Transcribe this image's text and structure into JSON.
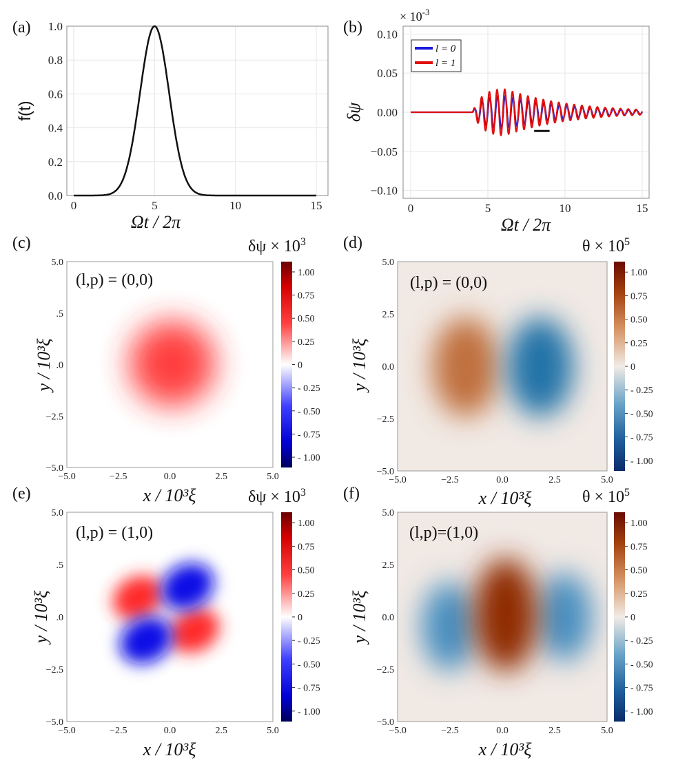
{
  "chart_data": [
    {
      "id": "a",
      "type": "line",
      "panel_label": "(a)",
      "xlabel": "Ωt / 2π",
      "ylabel": "f(t)",
      "xlim": [
        0,
        15
      ],
      "ylim": [
        0,
        1
      ],
      "xticks": [
        "0",
        "5",
        "10",
        "15"
      ],
      "yticks": [
        "0.0",
        "0.2",
        "0.4",
        "0.6",
        "0.8",
        "1.0"
      ],
      "grid": true,
      "series": [
        {
          "name": "f(t)",
          "color": "#000000",
          "shape": "gaussian",
          "center": 5,
          "sigma": 0.9,
          "amplitude": 1.0
        }
      ]
    },
    {
      "id": "b",
      "type": "line",
      "panel_label": "(b)",
      "xlabel": "Ωt / 2π",
      "ylabel": "δψ",
      "scale_label": "× 10",
      "scale_exponent": "-3",
      "xlim": [
        0,
        15
      ],
      "ylim": [
        -0.11,
        0.11
      ],
      "xticks": [
        "0",
        "5",
        "10",
        "15"
      ],
      "yticks": [
        "−0.10",
        "−0.05",
        "0.00",
        "0.05",
        "0.10"
      ],
      "grid": true,
      "legend_position": "top-left",
      "series": [
        {
          "name": "l = 0",
          "color": "#1a1adc",
          "onset": 4.0,
          "peak_time": 6.0,
          "peak_amplitude": 0.022,
          "period": 0.5,
          "decay": 4.0
        },
        {
          "name": "l = 1",
          "color": "#e01010",
          "onset": 4.0,
          "peak_time": 6.0,
          "peak_amplitude": 0.031,
          "period": 0.5,
          "decay": 4.0
        }
      ],
      "annotation": {
        "type": "bar",
        "x_from": 8.0,
        "x_to": 9.0,
        "y": -0.024
      }
    },
    {
      "id": "c",
      "type": "heatmap",
      "panel_label": "(c)",
      "mode_label": "(l,p) = (0,0)",
      "colorbar_title": "δψ × 10",
      "colorbar_exponent": "3",
      "colormap": "bwr",
      "pattern": "monopole",
      "xlim": [
        -5,
        5
      ],
      "ylim": [
        -5,
        5
      ],
      "xticks": [
        "−5.0",
        "−2.5",
        "0.0",
        "2.5",
        "5.0"
      ],
      "yticks": [
        "5.0",
        ".5",
        ".0",
        "−2.5",
        "−5.0"
      ],
      "xlabel": "x / 10³ξ",
      "ylabel": "y / 10³ξ",
      "colorbar_ticks": [
        "1.00",
        "0.75",
        "0.50",
        "0.25",
        "0",
        "- 0.25",
        "- 0.50",
        "- 0.75",
        "- 1.00"
      ]
    },
    {
      "id": "d",
      "type": "heatmap",
      "panel_label": "(d)",
      "mode_label": "(l,p) = (0,0)",
      "colorbar_title": "θ × 10",
      "colorbar_exponent": "5",
      "colormap": "RdBu_brown",
      "pattern": "dipole",
      "xlim": [
        -5,
        5
      ],
      "ylim": [
        -5,
        5
      ],
      "xticks": [
        "−5.0",
        "−2.5",
        "0.0",
        "2.5",
        "5.0"
      ],
      "yticks": [
        "5.0",
        "2.5",
        "0.0",
        "−2.5",
        "−5.0"
      ],
      "xlabel": "x / 10³ξ",
      "ylabel": "y / 10³ξ",
      "colorbar_ticks": [
        "1.00",
        "0.75",
        "0.50",
        "0.25",
        "0",
        "- 0.25",
        "- 0.50",
        "- 0.75",
        "- 1.00"
      ]
    },
    {
      "id": "e",
      "type": "heatmap",
      "panel_label": "(e)",
      "mode_label": "(l,p) = (1,0)",
      "colorbar_title": "δψ × 10",
      "colorbar_exponent": "3",
      "colormap": "bwr",
      "pattern": "quadrupole",
      "xlim": [
        -5,
        5
      ],
      "ylim": [
        -5,
        5
      ],
      "xticks": [
        "−5.0",
        "−2.5",
        "0.0",
        "2.5",
        "5.0"
      ],
      "yticks": [
        "5.0",
        ".5",
        ".0",
        "−2.5",
        "−5.0"
      ],
      "xlabel": "x / 10³ξ",
      "ylabel": "y / 10³ξ",
      "colorbar_ticks": [
        "1.00",
        "0.75",
        "0.50",
        "0.25",
        "0",
        "- 0.25",
        "- 0.50",
        "- 0.75",
        "- 1.00"
      ]
    },
    {
      "id": "f",
      "type": "heatmap",
      "panel_label": "(f)",
      "mode_label": "(l,p)=(1,0)",
      "colorbar_title": "θ × 10",
      "colorbar_exponent": "5",
      "colormap": "RdBu_brown",
      "pattern": "tripole",
      "xlim": [
        -5,
        5
      ],
      "ylim": [
        -5,
        5
      ],
      "xticks": [
        "−5.0",
        "−2.5",
        "0.0",
        "2.5",
        "5.0"
      ],
      "yticks": [
        "5.0",
        "2.5",
        "0.0",
        "−2.5",
        "−5.0"
      ],
      "xlabel": "x / 10³ξ",
      "ylabel": "y / 10³ξ",
      "colorbar_ticks": [
        "1.00",
        "0.75",
        "0.50",
        "0.25",
        "0",
        "- 0.25",
        "- 0.50",
        "- 0.75",
        "- 1.00"
      ]
    }
  ]
}
